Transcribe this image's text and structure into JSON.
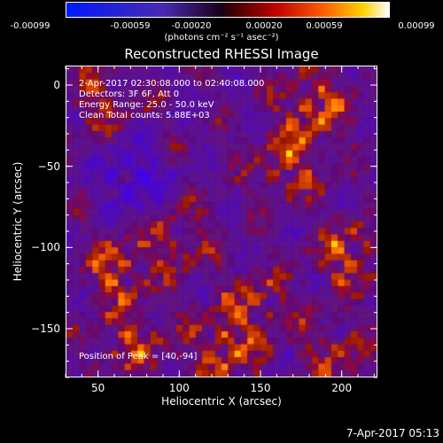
{
  "chart_data": {
    "type": "heatmap",
    "title": "Reconstructed RHESSI Image",
    "xlabel": "Heliocentric X (arcsec)",
    "ylabel": "Heliocentric Y (arcsec)",
    "xlim": [
      30,
      222
    ],
    "ylim": [
      -180,
      12
    ],
    "xticks": [
      50,
      100,
      150,
      200
    ],
    "yticks": [
      0,
      -50,
      -100,
      -150
    ],
    "colorbar": {
      "range": [
        -0.00099,
        0.00099
      ],
      "ticks": [
        "-0.00099",
        "-0.00059",
        "-0.00020",
        "0.00020",
        "0.00059",
        "0.00099"
      ],
      "unit_label": "(photons cm⁻² s⁻¹ asec⁻²)"
    },
    "annotations": [
      "2-Apr-2017 02:30:08.000 to 02:40:08.000",
      "Detectors: 3F 6F, Att 0",
      "Energy Range: 25.0 - 50.0 keV",
      "Clean    Total counts: 5.88E+03"
    ],
    "peak_label": "Position of Peak = [40,-94]",
    "footer": "7-Apr-2017 05:13",
    "colors": {
      "low": "#0000ff",
      "mid": "#000000",
      "high": "#ffffff"
    }
  }
}
